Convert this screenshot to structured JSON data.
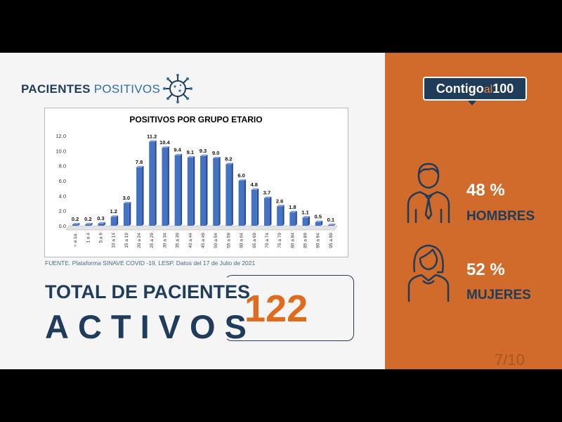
{
  "header": {
    "title_part1": "PACIENTES",
    "title_part2": "POSITIVOS"
  },
  "chart_data": {
    "type": "bar",
    "title": "POSITIVOS POR GRUPO ETARIO",
    "categories": [
      "< a 1a.",
      "1 a 4",
      "5 a 9",
      "10 a 14",
      "15 a 19",
      "20 a 24",
      "25 a 29",
      "30 a 34",
      "35 a 39",
      "40 a 44",
      "45 a 49",
      "50 a 54",
      "55 a 59",
      "60 a 64",
      "65 a 69",
      "70 a 74",
      "75 a 79",
      "80 a 84",
      "85 a 89",
      "90 a 94",
      "95 a 99"
    ],
    "values": [
      0.2,
      0.2,
      0.3,
      1.2,
      3.0,
      7.8,
      11.2,
      10.4,
      9.4,
      9.1,
      9.3,
      9.0,
      8.2,
      6.0,
      4.8,
      3.7,
      2.6,
      1.8,
      1.1,
      0.5,
      0.1
    ],
    "yticks": [
      "0.0",
      "2.0",
      "4.0",
      "6.0",
      "8.0",
      "10.0",
      "12.0"
    ],
    "ylim": [
      0,
      12
    ],
    "bar_color": "#4472c4",
    "xlabel": "",
    "ylabel": ""
  },
  "source": "FUENTE. Plataforma SINAVE COVID -19, LESP. Datos del 17 de Julio de 2021",
  "total": {
    "line1": "TOTAL DE PACIENTES",
    "line2": "ACTIVOS",
    "count": "122"
  },
  "logo": {
    "part1": "Contigo",
    "part2": "al",
    "part3": "100"
  },
  "men": {
    "percent": "48 %",
    "label": "HOMBRES"
  },
  "women": {
    "percent": "52 %",
    "label": "MUJERES"
  },
  "page_number": "7/10",
  "colors": {
    "navy": "#1f3c5a",
    "orange": "#d06b2c",
    "count_orange": "#e06a1d"
  }
}
